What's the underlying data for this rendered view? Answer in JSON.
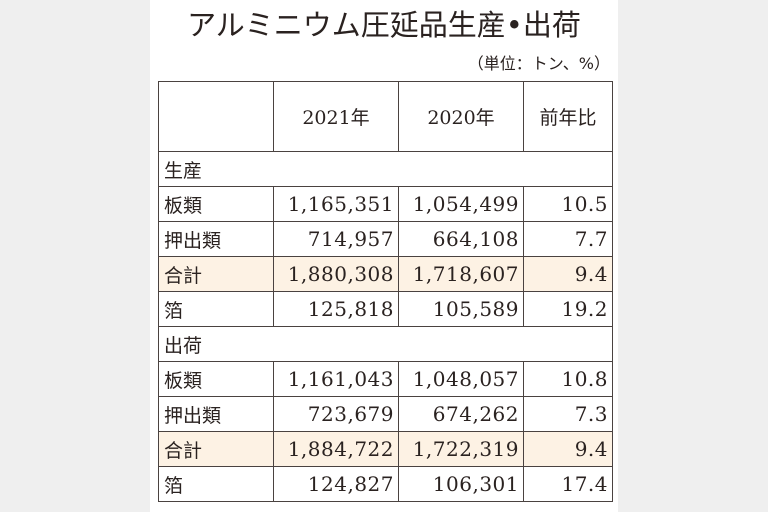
{
  "title": "アルミニウム圧延品生産•出荷",
  "unit": "（単位：トン、%）",
  "columns": [
    "",
    "2021年",
    "2020年",
    "前年比"
  ],
  "sections": [
    {
      "name": "生産",
      "rows": [
        {
          "label": "板類",
          "y2021": "1,165,351",
          "y2020": "1,054,499",
          "ratio": "10.5",
          "total": false
        },
        {
          "label": "押出類",
          "y2021": "714,957",
          "y2020": "664,108",
          "ratio": "7.7",
          "total": false
        },
        {
          "label": "合計",
          "y2021": "1,880,308",
          "y2020": "1,718,607",
          "ratio": "9.4",
          "total": true
        },
        {
          "label": "箔",
          "y2021": "125,818",
          "y2020": "105,589",
          "ratio": "19.2",
          "total": false
        }
      ]
    },
    {
      "name": "出荷",
      "rows": [
        {
          "label": "板類",
          "y2021": "1,161,043",
          "y2020": "1,048,057",
          "ratio": "10.8",
          "total": false
        },
        {
          "label": "押出類",
          "y2021": "723,679",
          "y2020": "674,262",
          "ratio": "7.3",
          "total": false
        },
        {
          "label": "合計",
          "y2021": "1,884,722",
          "y2020": "1,722,319",
          "ratio": "9.4",
          "total": true
        },
        {
          "label": "箔",
          "y2021": "124,827",
          "y2020": "106,301",
          "ratio": "17.4",
          "total": false
        }
      ]
    }
  ]
}
